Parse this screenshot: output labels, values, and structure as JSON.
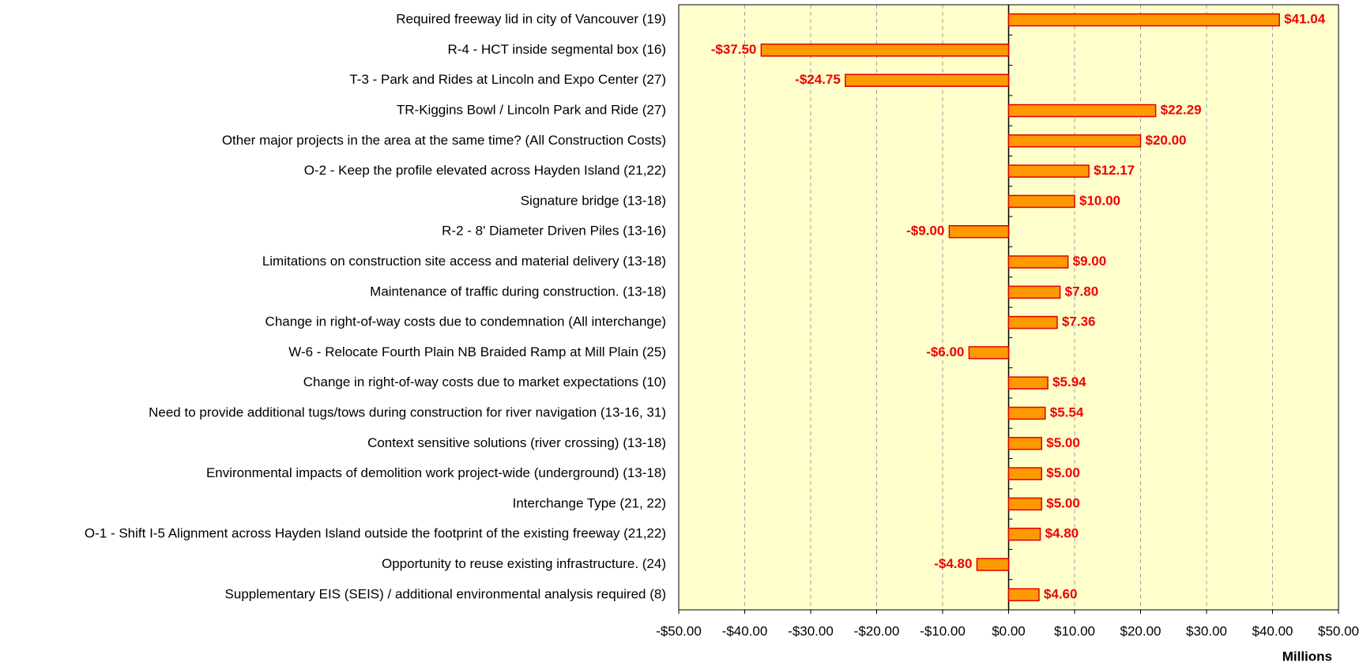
{
  "chart_data": {
    "type": "bar",
    "orientation": "horizontal",
    "x_label": "Millions",
    "categories": [
      "Required freeway lid in city of Vancouver (19)",
      "R-4 - HCT inside segmental box (16)",
      "T-3 - Park and Rides at Lincoln and Expo Center (27)",
      "TR-Kiggins Bowl / Lincoln Park and Ride (27)",
      "Other major projects in the area at the same time? (All Construction Costs)",
      "O-2 - Keep the profile elevated across Hayden Island (21,22)",
      "Signature bridge (13-18)",
      "R-2 - 8' Diameter Driven Piles (13-16)",
      "Limitations on construction site access and material delivery (13-18)",
      "Maintenance of traffic during construction. (13-18)",
      "Change in right-of-way costs due to condemnation (All interchange)",
      "W-6 - Relocate Fourth Plain NB Braided Ramp at Mill Plain (25)",
      "Change in right-of-way costs due to market expectations (10)",
      "Need to provide additional tugs/tows during construction for river navigation (13-16, 31)",
      "Context sensitive solutions (river crossing) (13-18)",
      "Environmental impacts of demolition work project-wide (underground) (13-18)",
      "Interchange Type (21, 22)",
      "O-1 - Shift I-5 Alignment across Hayden Island outside the footprint of the existing freeway (21,22)",
      "Opportunity to reuse existing infrastructure. (24)",
      "Supplementary EIS (SEIS) / additional environmental analysis required (8)"
    ],
    "values": [
      41.04,
      -37.5,
      -24.75,
      22.29,
      20.0,
      12.17,
      10.0,
      -9.0,
      9.0,
      7.8,
      7.36,
      -6.0,
      5.94,
      5.54,
      5.0,
      5.0,
      5.0,
      4.8,
      -4.8,
      4.6
    ],
    "value_labels": [
      "$41.04",
      "-$37.50",
      "-$24.75",
      "$22.29",
      "$20.00",
      "$12.17",
      "$10.00",
      "-$9.00",
      "$9.00",
      "$7.80",
      "$7.36",
      "-$6.00",
      "$5.94",
      "$5.54",
      "$5.00",
      "$5.00",
      "$5.00",
      "$4.80",
      "-$4.80",
      "$4.60"
    ],
    "color": "#ff9900",
    "edge_color": "#e00000",
    "label_color": "#ee0000",
    "plot_background": "#ffffcc",
    "grid": true,
    "xlim": [
      -50,
      50
    ],
    "xticks": [
      {
        "value": -50,
        "label": "-$50.00"
      },
      {
        "value": -40,
        "label": "-$40.00"
      },
      {
        "value": -30,
        "label": "-$30.00"
      },
      {
        "value": -20,
        "label": "-$20.00"
      },
      {
        "value": -10,
        "label": "-$10.00"
      },
      {
        "value": 0,
        "label": "$0.00"
      },
      {
        "value": 10,
        "label": "$10.00"
      },
      {
        "value": 20,
        "label": "$20.00"
      },
      {
        "value": 30,
        "label": "$30.00"
      },
      {
        "value": 40,
        "label": "$40.00"
      },
      {
        "value": 50,
        "label": "$50.00"
      }
    ]
  }
}
